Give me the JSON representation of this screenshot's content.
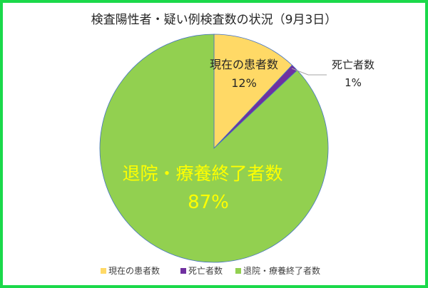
{
  "chart_data": {
    "type": "pie",
    "title": "検査陽性者・疑い例検査数の状況（9月3日）",
    "slices": [
      {
        "name": "現在の患者数",
        "value": 12,
        "label": "12%",
        "color": "#ffd966"
      },
      {
        "name": "死亡者数",
        "value": 1,
        "label": "1%",
        "color": "#7030a0"
      },
      {
        "name": "退院・療養終了者数",
        "value": 87,
        "label": "87%",
        "color": "#92d050"
      }
    ],
    "legend_position": "bottom",
    "start_angle": "top, clockwise"
  },
  "colors": {
    "frame": "#1bd94a",
    "slice_border": "#4472c4",
    "large_label": "#ffff00",
    "leader_line": "#a6a6a6"
  }
}
